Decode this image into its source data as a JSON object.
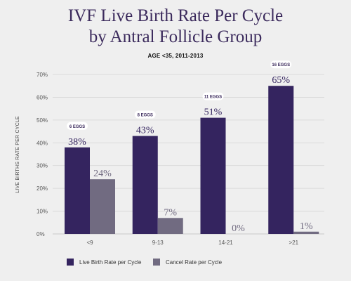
{
  "title_line1": "IVF Live Birth Rate Per Cycle",
  "title_line2": "by Antral Follicle Group",
  "subtitle": "AGE <35, 2011-2013",
  "colors": {
    "live": "#34245f",
    "cancel": "#716b81",
    "grid": "#d4d4d4",
    "title": "#3b2a5c"
  },
  "chart_data": {
    "type": "bar",
    "title": "IVF Live Birth Rate Per Cycle by Antral Follicle Group",
    "subtitle": "AGE <35, 2011-2013",
    "xlabel": "",
    "ylabel": "LIVE BIRTHS RATE PER CYCLE",
    "ylim": [
      0,
      70
    ],
    "yticks": [
      "0%",
      "10%",
      "20%",
      "30%",
      "40%",
      "50%",
      "60%",
      "70%"
    ],
    "grid": true,
    "legend_position": "bottom-left",
    "categories": [
      "<9",
      "9-13",
      "14-21",
      ">21"
    ],
    "badges": [
      "6 EGGS",
      "8 EGGS",
      "11 EGGS",
      "16 EGGS"
    ],
    "series": [
      {
        "name": "Live Birth Rate per Cycle",
        "values": [
          38,
          43,
          51,
          65
        ],
        "labels": [
          "38%",
          "43%",
          "51%",
          "65%"
        ]
      },
      {
        "name": "Cancel Rate per Cycle",
        "values": [
          24,
          7,
          0,
          1
        ],
        "labels": [
          "24%",
          "7%",
          "0%",
          "1%"
        ]
      }
    ]
  }
}
